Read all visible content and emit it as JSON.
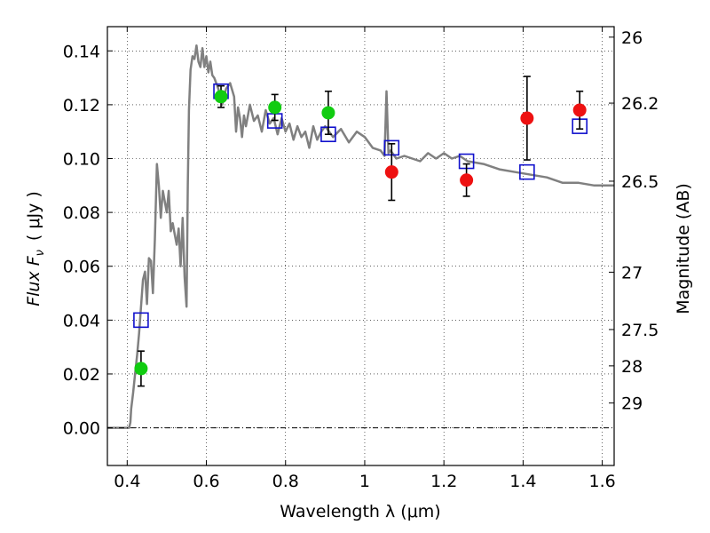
{
  "chart_data": {
    "type": "scatter",
    "xlabel": "Wavelength  λ (μm)",
    "ylabel_main": "Flux  F",
    "ylabel_sub": "ν",
    "ylabel_units": "( μJy )",
    "y2label": "Magnitude (AB)",
    "xlim": [
      0.35,
      1.63
    ],
    "ylim": [
      -0.014,
      0.149
    ],
    "grid": true,
    "x_ticks": [
      {
        "value": 0.4,
        "label": "0.4"
      },
      {
        "value": 0.6,
        "label": "0.6"
      },
      {
        "value": 0.8,
        "label": "0.8"
      },
      {
        "value": 1.0,
        "label": "1"
      },
      {
        "value": 1.2,
        "label": "1.2"
      },
      {
        "value": 1.4,
        "label": "1.4"
      },
      {
        "value": 1.6,
        "label": "1.6"
      }
    ],
    "y_ticks": [
      {
        "value": 0.0,
        "label": "0.00"
      },
      {
        "value": 0.02,
        "label": "0.02"
      },
      {
        "value": 0.04,
        "label": "0.04"
      },
      {
        "value": 0.06,
        "label": "0.06"
      },
      {
        "value": 0.08,
        "label": "0.08"
      },
      {
        "value": 0.1,
        "label": "0.10"
      },
      {
        "value": 0.12,
        "label": "0.12"
      },
      {
        "value": 0.14,
        "label": "0.14"
      }
    ],
    "y2_ticks": [
      {
        "flux": 0.1451,
        "label": "26"
      },
      {
        "flux": 0.1206,
        "label": "26.2"
      },
      {
        "flux": 0.0916,
        "label": "26.5"
      },
      {
        "flux": 0.0578,
        "label": "27"
      },
      {
        "flux": 0.0365,
        "label": "27.5"
      },
      {
        "flux": 0.023,
        "label": "28"
      },
      {
        "flux": 0.0092,
        "label": "29"
      }
    ],
    "series": [
      {
        "kind": "line",
        "color": "#808080",
        "x": [
          0.35,
          0.405,
          0.408,
          0.41,
          0.415,
          0.42,
          0.425,
          0.43,
          0.435,
          0.44,
          0.445,
          0.45,
          0.455,
          0.46,
          0.465,
          0.47,
          0.475,
          0.48,
          0.485,
          0.49,
          0.495,
          0.5,
          0.505,
          0.51,
          0.515,
          0.52,
          0.525,
          0.53,
          0.535,
          0.54,
          0.545,
          0.55,
          0.553,
          0.556,
          0.56,
          0.565,
          0.57,
          0.575,
          0.58,
          0.585,
          0.59,
          0.595,
          0.6,
          0.605,
          0.61,
          0.615,
          0.62,
          0.63,
          0.64,
          0.65,
          0.66,
          0.67,
          0.675,
          0.68,
          0.685,
          0.69,
          0.695,
          0.7,
          0.71,
          0.72,
          0.73,
          0.74,
          0.75,
          0.76,
          0.77,
          0.78,
          0.79,
          0.8,
          0.81,
          0.82,
          0.83,
          0.84,
          0.85,
          0.86,
          0.87,
          0.88,
          0.89,
          0.9,
          0.92,
          0.94,
          0.96,
          0.98,
          1.0,
          1.02,
          1.04,
          1.05,
          1.055,
          1.06,
          1.065,
          1.08,
          1.1,
          1.12,
          1.14,
          1.16,
          1.18,
          1.2,
          1.22,
          1.24,
          1.26,
          1.3,
          1.34,
          1.38,
          1.42,
          1.46,
          1.5,
          1.54,
          1.58,
          1.63
        ],
        "y": [
          0.0,
          0.0,
          0.002,
          0.007,
          0.013,
          0.02,
          0.027,
          0.035,
          0.045,
          0.055,
          0.058,
          0.046,
          0.063,
          0.062,
          0.05,
          0.07,
          0.098,
          0.09,
          0.078,
          0.088,
          0.084,
          0.08,
          0.088,
          0.073,
          0.076,
          0.072,
          0.068,
          0.074,
          0.06,
          0.078,
          0.056,
          0.045,
          0.09,
          0.118,
          0.133,
          0.138,
          0.137,
          0.142,
          0.136,
          0.134,
          0.141,
          0.134,
          0.138,
          0.132,
          0.136,
          0.131,
          0.13,
          0.126,
          0.12,
          0.126,
          0.128,
          0.123,
          0.11,
          0.119,
          0.115,
          0.108,
          0.116,
          0.112,
          0.12,
          0.114,
          0.116,
          0.11,
          0.118,
          0.113,
          0.115,
          0.109,
          0.115,
          0.11,
          0.113,
          0.107,
          0.112,
          0.108,
          0.11,
          0.104,
          0.112,
          0.107,
          0.11,
          0.112,
          0.108,
          0.111,
          0.106,
          0.11,
          0.108,
          0.104,
          0.103,
          0.101,
          0.125,
          0.102,
          0.103,
          0.1,
          0.101,
          0.1,
          0.099,
          0.102,
          0.1,
          0.102,
          0.1,
          0.101,
          0.099,
          0.098,
          0.096,
          0.095,
          0.094,
          0.093,
          0.091,
          0.091,
          0.09,
          0.09
        ]
      },
      {
        "kind": "points",
        "marker": "square",
        "color": "#1010cc",
        "x": [
          0.435,
          0.637,
          0.773,
          0.908,
          1.068,
          1.257,
          1.41,
          1.543
        ],
        "y": [
          0.04,
          0.125,
          0.114,
          0.109,
          0.104,
          0.099,
          0.095,
          0.112
        ]
      },
      {
        "kind": "points",
        "marker": "circle",
        "color": "#11cc11",
        "x": [
          0.435,
          0.637,
          0.773,
          0.908
        ],
        "y": [
          0.022,
          0.123,
          0.119,
          0.117
        ],
        "yerr": [
          0.0065,
          0.004,
          0.0048,
          0.008
        ]
      },
      {
        "kind": "points",
        "marker": "circle",
        "color": "#ee1111",
        "x": [
          1.068,
          1.257,
          1.41,
          1.543
        ],
        "y": [
          0.095,
          0.092,
          0.115,
          0.118
        ],
        "yerr": [
          0.0105,
          0.006,
          0.0155,
          0.007
        ]
      }
    ]
  }
}
